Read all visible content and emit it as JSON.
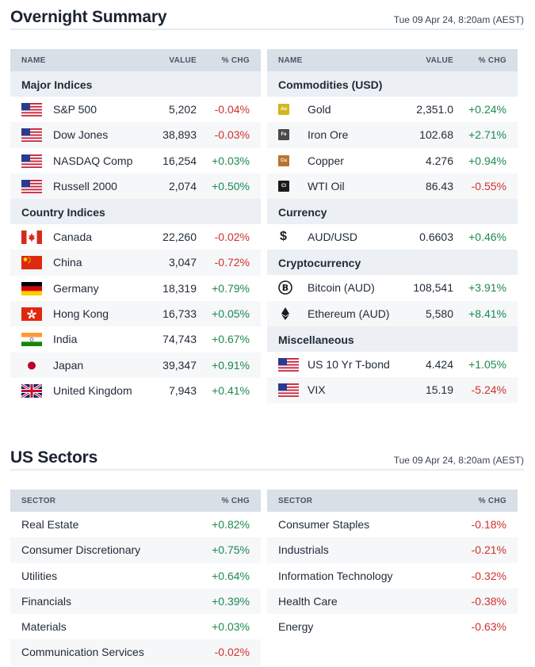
{
  "overnight": {
    "title": "Overnight Summary",
    "date": "Tue 09 Apr 24, 8:20am (AEST)",
    "left": {
      "headers": {
        "name": "NAME",
        "value": "VALUE",
        "chg": "% CHG"
      },
      "groups": [
        {
          "label": "Major Indices",
          "rows": [
            {
              "name": "S&P 500",
              "value": "5,202",
              "chg": "-0.04%",
              "flag": "us-flag-icon"
            },
            {
              "name": "Dow Jones",
              "value": "38,893",
              "chg": "-0.03%",
              "flag": "us-flag-icon"
            },
            {
              "name": "NASDAQ Comp",
              "value": "16,254",
              "chg": "+0.03%",
              "flag": "us-flag-icon"
            },
            {
              "name": "Russell 2000",
              "value": "2,074",
              "chg": "+0.50%",
              "flag": "us-flag-icon"
            }
          ]
        },
        {
          "label": "Country Indices",
          "rows": [
            {
              "name": "Canada",
              "value": "22,260",
              "chg": "-0.02%",
              "flag": "canada-flag-icon"
            },
            {
              "name": "China",
              "value": "3,047",
              "chg": "-0.72%",
              "flag": "china-flag-icon"
            },
            {
              "name": "Germany",
              "value": "18,319",
              "chg": "+0.79%",
              "flag": "germany-flag-icon"
            },
            {
              "name": "Hong Kong",
              "value": "16,733",
              "chg": "+0.05%",
              "flag": "hong-kong-flag-icon"
            },
            {
              "name": "India",
              "value": "74,743",
              "chg": "+0.67%",
              "flag": "india-flag-icon"
            },
            {
              "name": "Japan",
              "value": "39,347",
              "chg": "+0.91%",
              "flag": "japan-flag-icon"
            },
            {
              "name": "United Kingdom",
              "value": "7,943",
              "chg": "+0.41%",
              "flag": "uk-flag-icon"
            }
          ]
        }
      ]
    },
    "right": {
      "headers": {
        "name": "NAME",
        "value": "VALUE",
        "chg": "% CHG"
      },
      "groups": [
        {
          "label": "Commodities (USD)",
          "rows": [
            {
              "name": "Gold",
              "value": "2,351.0",
              "chg": "+0.24%",
              "icon": "gold-icon",
              "sym": "Au",
              "color": "#d4b51a"
            },
            {
              "name": "Iron Ore",
              "value": "102.68",
              "chg": "+2.71%",
              "icon": "iron-ore-icon",
              "sym": "Fe",
              "color": "#4a4a4a"
            },
            {
              "name": "Copper",
              "value": "4.276",
              "chg": "+0.94%",
              "icon": "copper-icon",
              "sym": "Cu",
              "color": "#b8732e"
            },
            {
              "name": "WTI Oil",
              "value": "86.43",
              "chg": "-0.55%",
              "icon": "oil-icon",
              "sym": "Cl",
              "color": "#1a1a1a"
            }
          ]
        },
        {
          "label": "Currency",
          "rows": [
            {
              "name": "AUD/USD",
              "value": "0.6603",
              "chg": "+0.46%",
              "icon": "dollar-icon"
            }
          ]
        },
        {
          "label": "Cryptocurrency",
          "rows": [
            {
              "name": "Bitcoin (AUD)",
              "value": "108,541",
              "chg": "+3.91%",
              "icon": "bitcoin-icon"
            },
            {
              "name": "Ethereum (AUD)",
              "value": "5,580",
              "chg": "+8.41%",
              "icon": "ethereum-icon"
            }
          ]
        },
        {
          "label": "Miscellaneous",
          "rows": [
            {
              "name": "US 10 Yr T-bond",
              "value": "4.424",
              "chg": "+1.05%",
              "flag": "us-flag-icon"
            },
            {
              "name": "VIX",
              "value": "15.19",
              "chg": "-5.24%",
              "flag": "us-flag-icon"
            }
          ]
        }
      ]
    }
  },
  "sectors": {
    "title": "US Sectors",
    "date": "Tue 09 Apr 24, 8:20am (AEST)",
    "headers": {
      "name": "SECTOR",
      "chg": "% CHG"
    },
    "left": [
      {
        "name": "Real Estate",
        "chg": "+0.82%"
      },
      {
        "name": "Consumer Discretionary",
        "chg": "+0.75%"
      },
      {
        "name": "Utilities",
        "chg": "+0.64%"
      },
      {
        "name": "Financials",
        "chg": "+0.39%"
      },
      {
        "name": "Materials",
        "chg": "+0.03%"
      },
      {
        "name": "Communication Services",
        "chg": "-0.02%"
      }
    ],
    "right": [
      {
        "name": "Consumer Staples",
        "chg": "-0.18%"
      },
      {
        "name": "Industrials",
        "chg": "-0.21%"
      },
      {
        "name": "Information Technology",
        "chg": "-0.32%"
      },
      {
        "name": "Health Care",
        "chg": "-0.38%"
      },
      {
        "name": "Energy",
        "chg": "-0.63%"
      }
    ]
  },
  "colors": {
    "positive": "#1d8a4e",
    "negative": "#d0312d",
    "header_bg": "#d8dfe7",
    "group_bg": "#eceff3"
  }
}
